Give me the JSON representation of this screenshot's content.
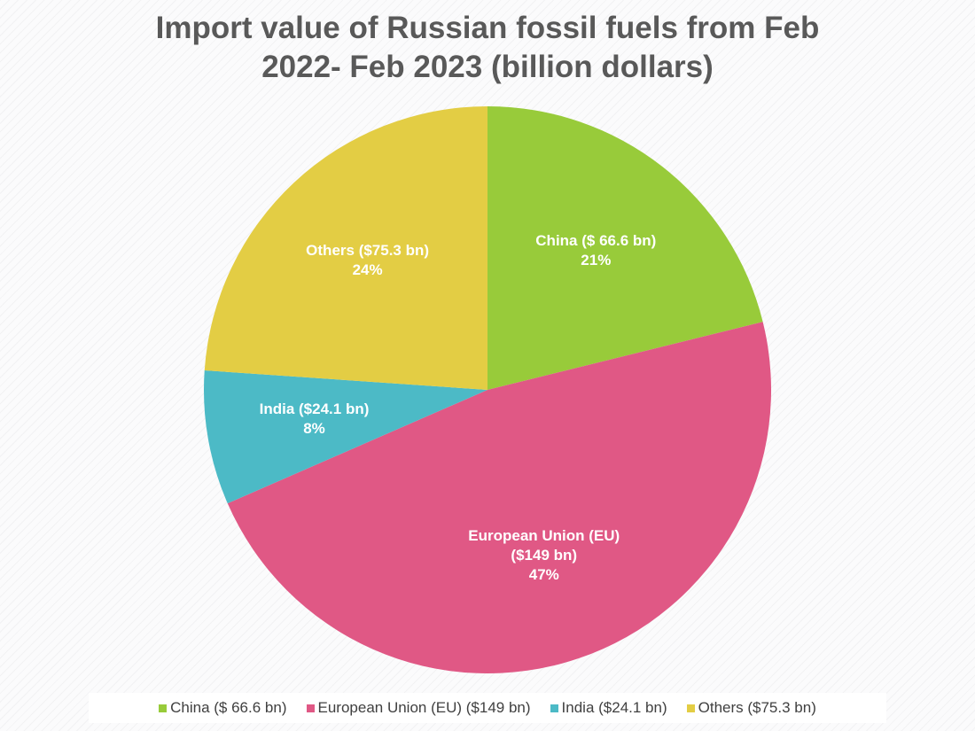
{
  "chart_data": {
    "type": "pie",
    "title_lines": [
      "Import value of Russian fossil fuels from Feb",
      "2022- Feb 2023 (billion dollars)"
    ],
    "slices": [
      {
        "name": "China ($ 66.6 bn)",
        "value": 66.6,
        "percent_label": "21%",
        "label_lines": [
          "China ($ 66.6 bn)",
          "21%"
        ],
        "color": "#98cb3a"
      },
      {
        "name": "European Union (EU) ($149 bn)",
        "value": 149,
        "percent_label": "47%",
        "label_lines": [
          "European Union (EU)",
          "($149 bn)",
          "47%"
        ],
        "color": "#e05885"
      },
      {
        "name": "India ($24.1 bn)",
        "value": 24.1,
        "percent_label": "8%",
        "label_lines": [
          "India ($24.1 bn)",
          "8%"
        ],
        "color": "#4cbac6"
      },
      {
        "name": "Others ($75.3 bn)",
        "value": 75.3,
        "percent_label": "24%",
        "label_lines": [
          "Others ($75.3 bn)",
          "24%"
        ],
        "color": "#e3cd44"
      }
    ],
    "legend_position": "bottom",
    "data_label_color": "#ffffff"
  }
}
